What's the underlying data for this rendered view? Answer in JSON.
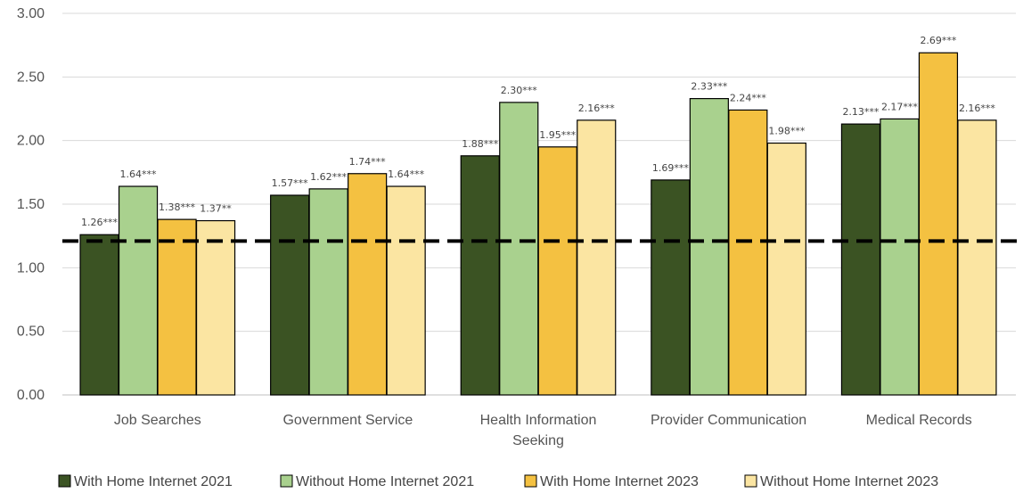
{
  "chart_data": {
    "type": "bar",
    "title": "",
    "xlabel": "",
    "ylabel": "",
    "ylim": [
      0,
      3
    ],
    "yticks": [
      "0.00",
      "0.50",
      "1.00",
      "1.50",
      "2.00",
      "2.50",
      "3.00"
    ],
    "grid": true,
    "legend_position": "bottom",
    "categories": [
      [
        "Job Searches"
      ],
      [
        "Government Service"
      ],
      [
        "Health Information",
        "Seeking"
      ],
      [
        "Provider Communication"
      ],
      [
        "Medical Records"
      ]
    ],
    "series": [
      {
        "name": "With Home Internet 2021",
        "color": "#3b5323",
        "values": [
          1.26,
          1.57,
          1.88,
          1.69,
          2.13
        ],
        "labels": [
          "1.26***",
          "1.57***",
          "1.88***",
          "1.69***",
          "2.13***"
        ]
      },
      {
        "name": "Without Home Internet 2021",
        "color": "#a9d18e",
        "values": [
          1.64,
          1.62,
          2.3,
          2.33,
          2.17
        ],
        "labels": [
          "1.64***",
          "1.62***",
          "2.30***",
          "2.33***",
          "2.17***"
        ]
      },
      {
        "name": "With Home Internet 2023",
        "color": "#f4c141",
        "values": [
          1.38,
          1.74,
          1.95,
          2.24,
          2.69
        ],
        "labels": [
          "1.38***",
          "1.74***",
          "1.95***",
          "2.24***",
          "2.69***"
        ]
      },
      {
        "name": "Without Home Internet 2023",
        "color": "#fbe5a2",
        "values": [
          1.37,
          1.64,
          2.16,
          1.98,
          2.16
        ],
        "labels": [
          "1.37**",
          "1.64***",
          "2.16***",
          "1.98***",
          "2.16***"
        ]
      }
    ],
    "reference_line": {
      "value": 1.21,
      "style": "dashed",
      "color": "#000000"
    },
    "gridline_color": "#d9d9d9",
    "axis_color": "#bfbfbf"
  }
}
